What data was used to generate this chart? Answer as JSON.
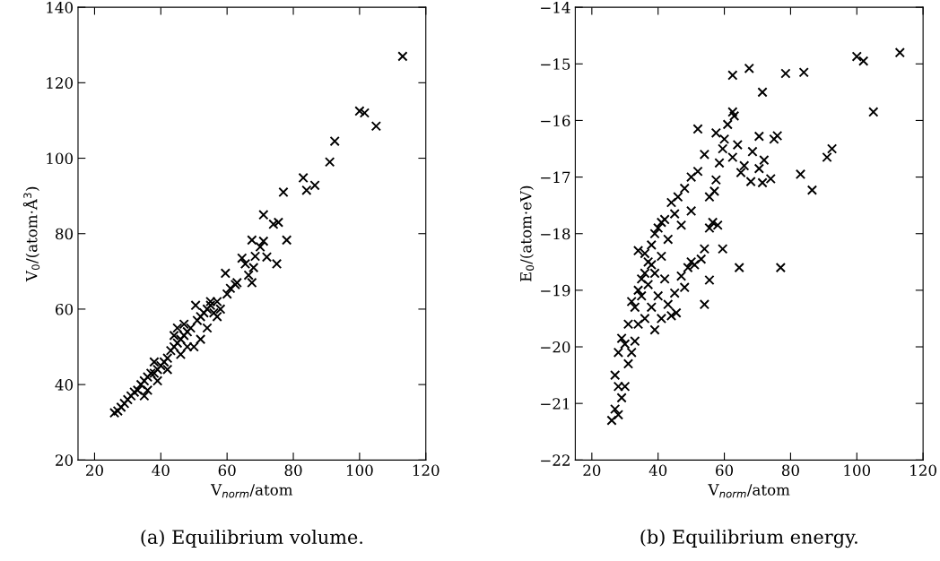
{
  "chart_data": [
    {
      "type": "scatter",
      "xlabel": "V$_{norm}$/atom",
      "ylabel": "V$_{0}$/(atom·Å$^{3}$)",
      "annotations": [
        "(a) Equilibrium volume."
      ],
      "marker": "cross",
      "grid": false,
      "legend": false,
      "xlim": [
        15,
        120
      ],
      "xticks": [
        20,
        40,
        60,
        80,
        100,
        120
      ],
      "ylim": [
        20,
        140
      ],
      "yticks": [
        20,
        40,
        60,
        80,
        100,
        120,
        140
      ],
      "series": [
        {
          "color": "#000000",
          "x": [
            113,
            100,
            101.5,
            105,
            92.5,
            91,
            83,
            84,
            86.5,
            77,
            71,
            74,
            75.5,
            78,
            67.5,
            71,
            70,
            64.5,
            68.5,
            72,
            75,
            65.5,
            68,
            66.5,
            67.5,
            59.5,
            62.5,
            61,
            58,
            55,
            50.5,
            54,
            57,
            52,
            48,
            46,
            44,
            42,
            40,
            38,
            36,
            34,
            32,
            30,
            28,
            26,
            27,
            29,
            31,
            33,
            35,
            37,
            39,
            41,
            43,
            45,
            47,
            49,
            51,
            53,
            55,
            56,
            50,
            48,
            46,
            44,
            42,
            39,
            36,
            38,
            35,
            45,
            47,
            52,
            60,
            63,
            57,
            54
          ],
          "values": [
            127,
            112.5,
            112,
            108.5,
            104.5,
            99,
            94.8,
            91.5,
            92.8,
            91,
            85,
            82.5,
            83,
            78.3,
            78.3,
            78,
            76.5,
            73.5,
            74,
            73.8,
            72,
            72,
            71,
            69,
            67,
            69.5,
            66.5,
            65.5,
            60,
            62,
            61,
            55,
            62,
            58,
            54,
            52,
            50,
            47,
            45,
            43,
            42,
            40,
            38,
            36,
            34,
            32.5,
            33,
            35,
            37,
            38.5,
            41,
            43,
            44,
            46,
            49,
            51,
            53,
            55,
            57,
            59,
            61,
            59,
            50,
            50,
            48,
            53,
            44,
            41,
            38.5,
            46,
            37,
            55,
            56,
            52,
            64,
            67,
            58,
            60
          ]
        }
      ]
    },
    {
      "type": "scatter",
      "xlabel": "V$_{norm}$/atom",
      "ylabel": "E$_{0}$/(atom·eV)",
      "annotations": [
        "(b) Equilibrium energy."
      ],
      "marker": "cross",
      "grid": false,
      "legend": false,
      "xlim": [
        15,
        120
      ],
      "xticks": [
        20,
        40,
        60,
        80,
        100,
        120
      ],
      "ylim": [
        -22,
        -14
      ],
      "yticks": [
        -22,
        -21,
        -20,
        -19,
        -18,
        -17,
        -16,
        -15,
        -14
      ],
      "series": [
        {
          "color": "#000000",
          "x": [
            113,
            100,
            102,
            105,
            62.5,
            67.5,
            78.5,
            84,
            71.5,
            62.5,
            63,
            61,
            52,
            57.5,
            60,
            70.5,
            75,
            76,
            64,
            91,
            92.5,
            68.5,
            72,
            65,
            68,
            71.5,
            74,
            83,
            86.5,
            70.5,
            66,
            62.5,
            59.5,
            58.5,
            57.5,
            57,
            55.5,
            56.5,
            58,
            55.5,
            59.5,
            54,
            64.5,
            77,
            55.5,
            54,
            53,
            51,
            49,
            47,
            45,
            44,
            45.5,
            43,
            48,
            50,
            54,
            52,
            50,
            48,
            46,
            44,
            42,
            40,
            38,
            36,
            34,
            50,
            47,
            45,
            43,
            41,
            39,
            37,
            35,
            33,
            31,
            29,
            28,
            27,
            26,
            27,
            28,
            29,
            30,
            31,
            32,
            33,
            34,
            36,
            38,
            40,
            42,
            39,
            41,
            35,
            37,
            39,
            41,
            28,
            30,
            32,
            34,
            36,
            38
          ],
          "values": [
            -14.8,
            -14.87,
            -14.95,
            -15.85,
            -15.2,
            -15.08,
            -15.17,
            -15.15,
            -15.5,
            -15.85,
            -15.92,
            -16.07,
            -16.15,
            -16.22,
            -16.33,
            -16.28,
            -16.33,
            -16.27,
            -16.43,
            -16.65,
            -16.5,
            -16.55,
            -16.7,
            -16.92,
            -17.08,
            -17.1,
            -17.03,
            -16.95,
            -17.23,
            -16.85,
            -16.8,
            -16.65,
            -16.5,
            -16.75,
            -17.05,
            -17.25,
            -17.35,
            -17.8,
            -17.85,
            -17.9,
            -18.27,
            -18.27,
            -18.6,
            -18.6,
            -18.82,
            -19.25,
            -18.45,
            -18.55,
            -18.6,
            -18.75,
            -19.05,
            -19.45,
            -19.4,
            -19.25,
            -18.95,
            -18.5,
            -16.6,
            -16.9,
            -17.0,
            -17.2,
            -17.35,
            -17.45,
            -17.75,
            -17.9,
            -18.2,
            -18.35,
            -18.3,
            -17.6,
            -17.85,
            -17.65,
            -18.1,
            -18.4,
            -18.7,
            -18.9,
            -19.1,
            -19.3,
            -19.6,
            -19.85,
            -20.1,
            -20.5,
            -21.3,
            -21.1,
            -21.2,
            -20.9,
            -20.7,
            -20.3,
            -20.1,
            -19.9,
            -19.6,
            -19.5,
            -19.3,
            -19.1,
            -18.8,
            -19.7,
            -19.5,
            -18.8,
            -18.5,
            -18.0,
            -17.8,
            -20.7,
            -19.95,
            -19.2,
            -19.0,
            -18.7,
            -18.55
          ]
        }
      ]
    }
  ]
}
